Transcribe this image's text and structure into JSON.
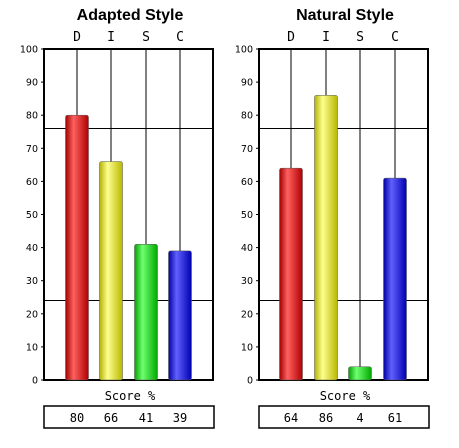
{
  "chart_data": [
    {
      "type": "bar",
      "title": "Adapted Style",
      "categories": [
        "D",
        "I",
        "S",
        "C"
      ],
      "values": [
        80,
        66,
        41,
        39
      ],
      "ylim": [
        0,
        100
      ],
      "yticks": [
        "0",
        "10",
        "20",
        "30",
        "40",
        "50",
        "60",
        "70",
        "80",
        "90",
        "100"
      ],
      "xlabel": "Score %",
      "score_values": [
        "80",
        "66",
        "41",
        "39"
      ],
      "colors": [
        "#e02020",
        "#e8e820",
        "#20d020",
        "#2020e0"
      ],
      "reference_lines": [
        76,
        24
      ],
      "grid": false
    },
    {
      "type": "bar",
      "title": "Natural Style",
      "categories": [
        "D",
        "I",
        "S",
        "C"
      ],
      "values": [
        64,
        86,
        4,
        61
      ],
      "ylim": [
        0,
        100
      ],
      "yticks": [
        "0",
        "10",
        "20",
        "30",
        "40",
        "50",
        "60",
        "70",
        "80",
        "90",
        "100"
      ],
      "xlabel": "Score %",
      "score_values": [
        "64",
        "86",
        "4",
        "61"
      ],
      "colors": [
        "#e02020",
        "#e8e820",
        "#20d020",
        "#2020e0"
      ],
      "reference_lines": [
        76,
        24
      ],
      "grid": false
    }
  ]
}
